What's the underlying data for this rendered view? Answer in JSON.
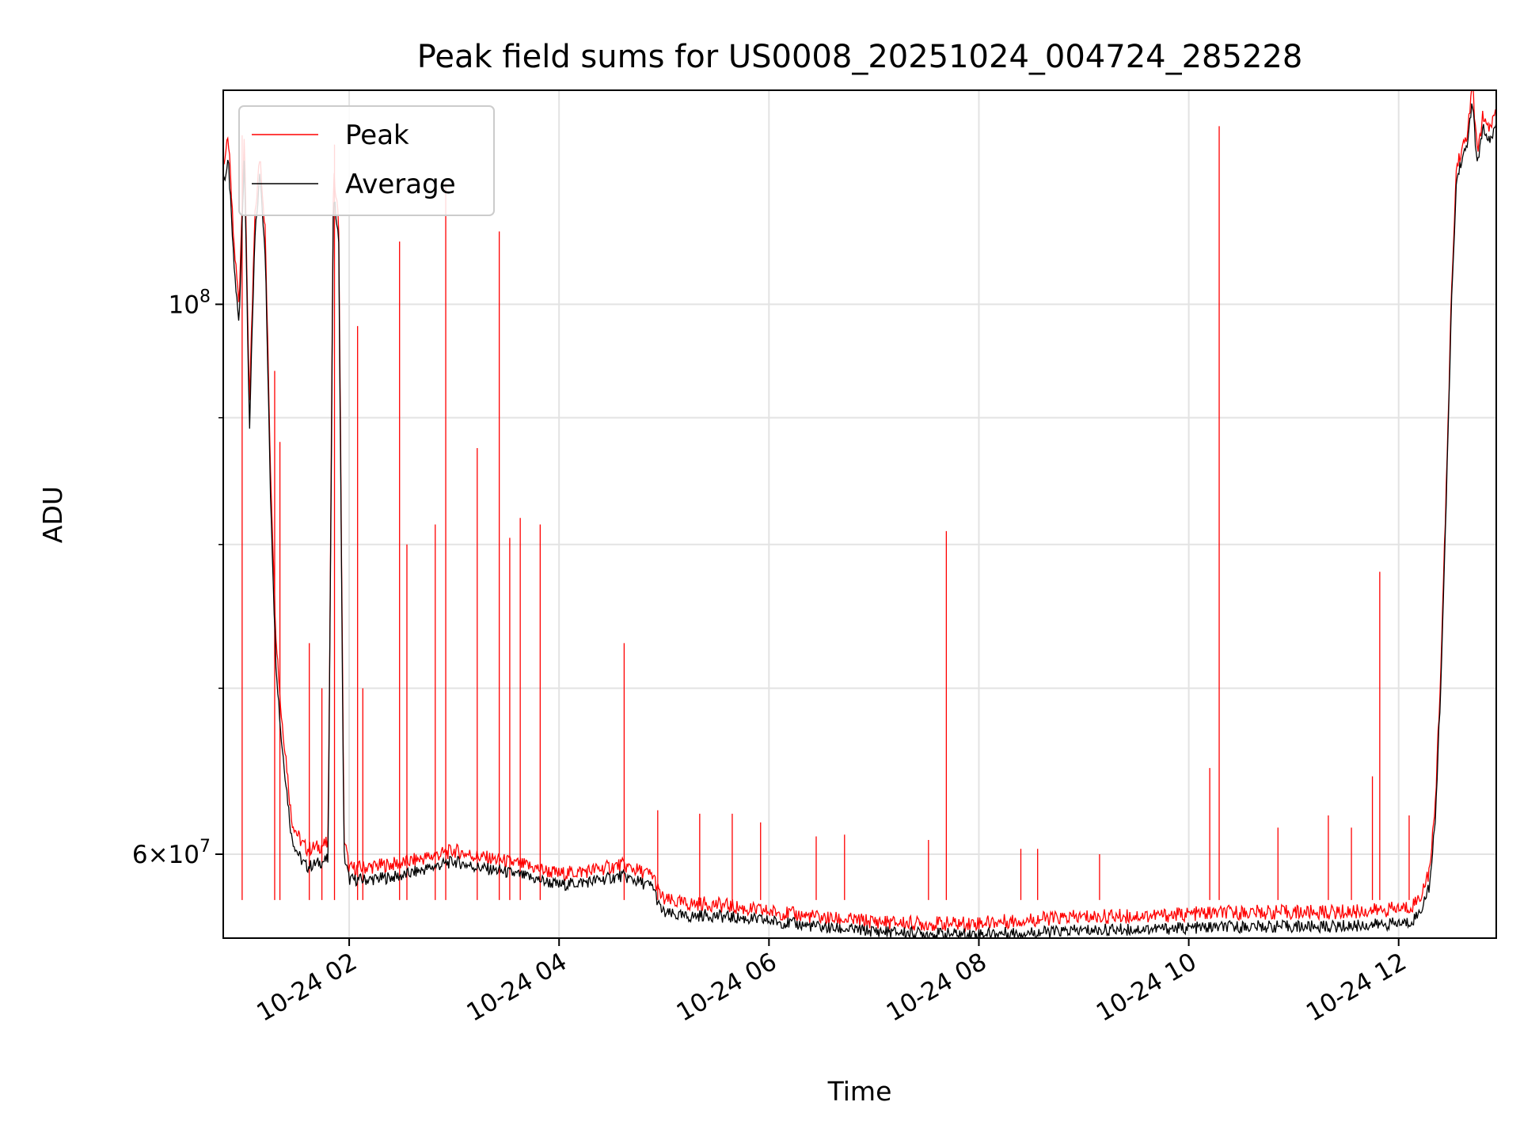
{
  "chart_data": {
    "type": "line",
    "title": "Peak field sums for US0008_20251024_004724_285228",
    "xlabel": "Time",
    "ylabel": "ADU",
    "yscale": "log",
    "xlim": [
      0.8,
      12.93
    ],
    "ylim": [
      55500000,
      122000000
    ],
    "x_ticks": [
      {
        "value": 2,
        "label": "10-24 02"
      },
      {
        "value": 4,
        "label": "10-24 04"
      },
      {
        "value": 6,
        "label": "10-24 06"
      },
      {
        "value": 8,
        "label": "10-24 08"
      },
      {
        "value": 10,
        "label": "10-24 10"
      },
      {
        "value": 12,
        "label": "10-24 12"
      }
    ],
    "y_major_ticks": [
      {
        "value": 60000000,
        "base": "6",
        "exp": "7"
      },
      {
        "value": 100000000,
        "base": "",
        "exp": "8"
      }
    ],
    "y_minor_ticks": [
      70000000,
      80000000,
      90000000
    ],
    "legend": {
      "placement": "top-left",
      "entries": [
        "Peak",
        "Average"
      ]
    },
    "grid": true,
    "series": [
      {
        "name": "Average",
        "color": "#000000",
        "x": [
          0.8,
          0.85,
          0.9,
          0.95,
          1.0,
          1.05,
          1.1,
          1.15,
          1.2,
          1.25,
          1.3,
          1.35,
          1.4,
          1.45,
          1.5,
          1.55,
          1.6,
          1.7,
          1.8,
          1.85,
          1.9,
          1.95,
          2.0,
          2.2,
          2.5,
          2.8,
          3.0,
          3.2,
          3.5,
          3.8,
          4.0,
          4.3,
          4.6,
          4.9,
          4.95,
          5.0,
          5.2,
          5.4,
          5.6,
          5.8,
          6.0,
          6.3,
          6.6,
          6.9,
          7.2,
          7.5,
          7.8,
          8.2,
          8.6,
          9.0,
          9.4,
          9.8,
          10.2,
          10.6,
          11.0,
          11.4,
          11.8,
          12.1,
          12.2,
          12.3,
          12.35,
          12.4,
          12.45,
          12.5,
          12.55,
          12.6,
          12.65,
          12.7,
          12.75,
          12.8,
          12.85,
          12.93
        ],
        "y": [
          112000000,
          114000000,
          104000000,
          98000000,
          115000000,
          89000000,
          106000000,
          113000000,
          105000000,
          84000000,
          72000000,
          67000000,
          64000000,
          61000000,
          60200000,
          59600000,
          59300000,
          59500000,
          59700000,
          111000000,
          106000000,
          60000000,
          58600000,
          58600000,
          58800000,
          59300000,
          59600000,
          59300000,
          59000000,
          58600000,
          58300000,
          58500000,
          58800000,
          58200000,
          57200000,
          56800000,
          56600000,
          56700000,
          56600000,
          56500000,
          56400000,
          56200000,
          56000000,
          55900000,
          55800000,
          55750000,
          55700000,
          55750000,
          55800000,
          55900000,
          55950000,
          56000000,
          56050000,
          56100000,
          56100000,
          56100000,
          56200000,
          56300000,
          56800000,
          58400000,
          62000000,
          70000000,
          82000000,
          99000000,
          112000000,
          114500000,
          115500000,
          121000000,
          113500000,
          118000000,
          116000000,
          118000000
        ]
      },
      {
        "name": "Peak",
        "color": "#ff0000",
        "x": [
          0.8,
          0.85,
          0.9,
          0.95,
          1.0,
          1.05,
          1.1,
          1.15,
          1.2,
          1.25,
          1.3,
          1.35,
          1.4,
          1.45,
          1.5,
          1.55,
          1.6,
          1.7,
          1.8,
          1.85,
          1.9,
          1.95,
          2.0,
          2.2,
          2.5,
          2.8,
          3.0,
          3.2,
          3.5,
          3.8,
          4.0,
          4.3,
          4.6,
          4.9,
          4.95,
          5.0,
          5.2,
          5.4,
          5.6,
          5.8,
          6.0,
          6.3,
          6.6,
          6.9,
          7.2,
          7.5,
          7.8,
          8.2,
          8.6,
          9.0,
          9.4,
          9.8,
          10.2,
          10.6,
          11.0,
          11.4,
          11.8,
          12.1,
          12.2,
          12.3,
          12.35,
          12.4,
          12.45,
          12.5,
          12.55,
          12.6,
          12.65,
          12.7,
          12.75,
          12.8,
          12.85,
          12.93
        ],
        "y": [
          114000000,
          116500000,
          106000000,
          100000000,
          117000000,
          91000000,
          108000000,
          115000000,
          107000000,
          86000000,
          74000000,
          68500000,
          65500000,
          62000000,
          61200000,
          60600000,
          60300000,
          60400000,
          60600000,
          113000000,
          108000000,
          61000000,
          59200000,
          59300000,
          59500000,
          59900000,
          60200000,
          59900000,
          59600000,
          59200000,
          58900000,
          59100000,
          59400000,
          58800000,
          57900000,
          57500000,
          57300000,
          57300000,
          57200000,
          57000000,
          56900000,
          56700000,
          56500000,
          56400000,
          56300000,
          56250000,
          56250000,
          56350000,
          56500000,
          56600000,
          56650000,
          56700000,
          56800000,
          56850000,
          56850000,
          56850000,
          56950000,
          57100000,
          57600000,
          59200000,
          63000000,
          71000000,
          83000000,
          100000000,
          113500000,
          115500000,
          116500000,
          123000000,
          115000000,
          119000000,
          117500000,
          119500000
        ]
      }
    ],
    "peak_spikes": [
      {
        "x": 0.98,
        "y": 117000000
      },
      {
        "x": 1.29,
        "y": 94000000
      },
      {
        "x": 1.34,
        "y": 88000000
      },
      {
        "x": 1.62,
        "y": 73000000
      },
      {
        "x": 1.74,
        "y": 70000000
      },
      {
        "x": 1.86,
        "y": 116000000
      },
      {
        "x": 2.08,
        "y": 98000000
      },
      {
        "x": 2.13,
        "y": 70000000
      },
      {
        "x": 2.48,
        "y": 106000000
      },
      {
        "x": 2.55,
        "y": 80000000
      },
      {
        "x": 2.82,
        "y": 81500000
      },
      {
        "x": 2.92,
        "y": 112000000
      },
      {
        "x": 3.22,
        "y": 87500000
      },
      {
        "x": 3.43,
        "y": 107000000
      },
      {
        "x": 3.53,
        "y": 80500000
      },
      {
        "x": 3.63,
        "y": 82000000
      },
      {
        "x": 3.82,
        "y": 81500000
      },
      {
        "x": 4.62,
        "y": 73000000
      },
      {
        "x": 4.94,
        "y": 62500000
      },
      {
        "x": 5.34,
        "y": 62300000
      },
      {
        "x": 5.65,
        "y": 62300000
      },
      {
        "x": 5.92,
        "y": 61800000
      },
      {
        "x": 6.45,
        "y": 61000000
      },
      {
        "x": 6.72,
        "y": 61100000
      },
      {
        "x": 7.52,
        "y": 60800000
      },
      {
        "x": 7.69,
        "y": 81000000
      },
      {
        "x": 8.4,
        "y": 60300000
      },
      {
        "x": 8.56,
        "y": 60300000
      },
      {
        "x": 9.15,
        "y": 60000000
      },
      {
        "x": 10.2,
        "y": 65000000
      },
      {
        "x": 10.29,
        "y": 118000000
      },
      {
        "x": 10.85,
        "y": 61500000
      },
      {
        "x": 11.33,
        "y": 62200000
      },
      {
        "x": 11.55,
        "y": 61500000
      },
      {
        "x": 11.75,
        "y": 64500000
      },
      {
        "x": 11.82,
        "y": 78000000
      },
      {
        "x": 12.1,
        "y": 62200000
      }
    ]
  }
}
